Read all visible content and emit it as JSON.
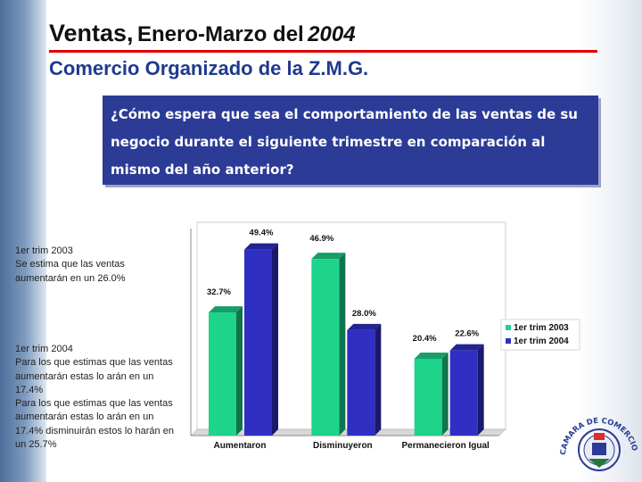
{
  "header": {
    "title_part1": "Ventas,",
    "title_part2": "Enero-Marzo del",
    "title_year": "2004",
    "subtitle": "Comercio Organizado de la Z.M.G."
  },
  "question": "¿Cómo espera que sea el comportamiento de las ventas de su negocio durante el siguiente trimestre en comparación al mismo del año anterior?",
  "notes": {
    "first": [
      "1er trim 2003",
      "Se estima que las ventas aumentarán en un 26.0%"
    ],
    "second": [
      "1er trim 2004",
      "Para los que estimas que las ventas aumentarán estas lo arán en un 17.4%",
      "Para los que estimas que las ventas aumentarán estas lo arán en un 17.4% disminuirán estos lo harán en un 25.7%"
    ]
  },
  "chart_data": {
    "type": "bar",
    "categories": [
      "Aumentaron",
      "Disminuyeron",
      "Permanecieron Igual"
    ],
    "series": [
      {
        "name": "1er trim 2003",
        "values": [
          32.7,
          46.9,
          20.4
        ],
        "labels": [
          "32.7%",
          "46.9%",
          "20.4%"
        ],
        "color": "#1ed38a"
      },
      {
        "name": "1er trim 2004",
        "values": [
          49.4,
          28.0,
          22.6
        ],
        "labels": [
          "49.4%",
          "28.0%",
          "22.6%"
        ],
        "color": "#2f2fc4"
      }
    ],
    "ylim": [
      0,
      55
    ],
    "grid": false,
    "legend_position": "right"
  },
  "seal": {
    "text": "CAMARA DE COMERCIO DE GUADALAJARA",
    "icon": "chamber-of-commerce-seal"
  }
}
